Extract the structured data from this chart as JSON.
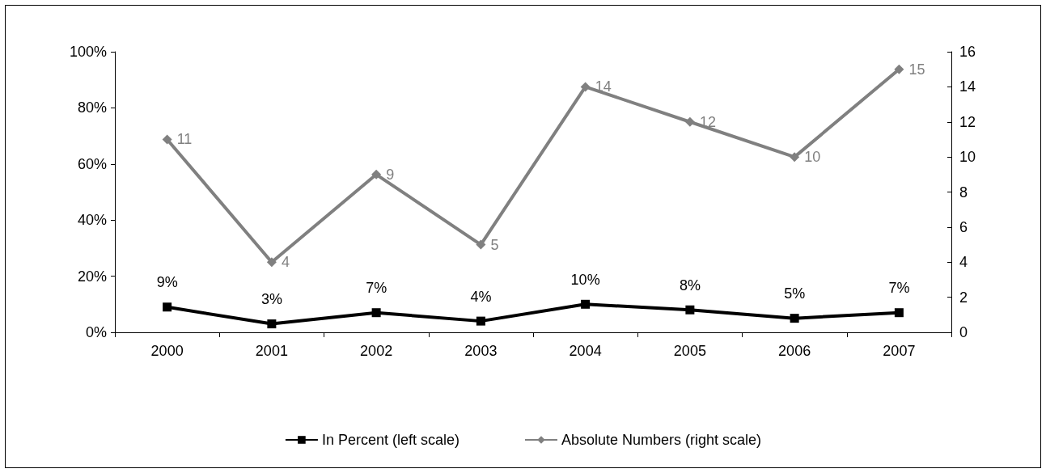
{
  "chart_data": {
    "type": "line",
    "categories": [
      "2000",
      "2001",
      "2002",
      "2003",
      "2004",
      "2005",
      "2006",
      "2007"
    ],
    "series": [
      {
        "name": "In Percent (left scale)",
        "color": "#000000",
        "marker": "square",
        "values": [
          9,
          3,
          7,
          4,
          10,
          8,
          5,
          7
        ],
        "value_labels": [
          "9%",
          "3%",
          "7%",
          "4%",
          "10%",
          "8%",
          "5%",
          "7%"
        ]
      },
      {
        "name": "Absolute Numbers (right scale)",
        "color": "#808080",
        "marker": "diamond",
        "axis": "y2",
        "values": [
          11,
          4,
          9,
          5,
          14,
          12,
          10,
          15
        ],
        "value_labels": [
          "11",
          "4",
          "9",
          "5",
          "14",
          "12",
          "10",
          "15"
        ]
      }
    ],
    "ylim": [
      0,
      100
    ],
    "yticks": [
      {
        "value": 0,
        "label": "0%"
      },
      {
        "value": 20,
        "label": "20%"
      },
      {
        "value": 40,
        "label": "40%"
      },
      {
        "value": 60,
        "label": "60%"
      },
      {
        "value": 80,
        "label": "80%"
      },
      {
        "value": 100,
        "label": "100%"
      }
    ],
    "y2lim": [
      0,
      16
    ],
    "y2ticks": [
      0,
      2,
      4,
      6,
      8,
      10,
      12,
      14,
      16
    ],
    "grid": false,
    "legend": "bottom"
  }
}
